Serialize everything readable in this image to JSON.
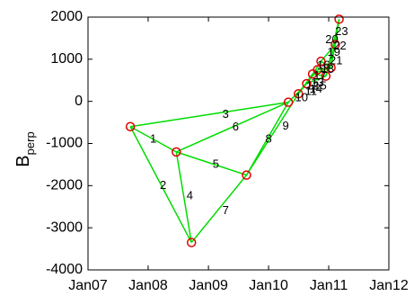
{
  "chart_data": {
    "type": "network-scatter",
    "ylabel": "B",
    "ylabel_subscript": "perp",
    "xlim": [
      "2007-01-01",
      "2012-01-01"
    ],
    "ylim": [
      -4000,
      2000
    ],
    "x_ticks": [
      "Jan07",
      "Jan08",
      "Jan09",
      "Jan10",
      "Jan11",
      "Jan12"
    ],
    "y_ticks": [
      2000,
      1000,
      0,
      -1000,
      -2000,
      -3000,
      -4000
    ],
    "grid": false,
    "colors": {
      "edge": "#00dd00",
      "node": "#e00000",
      "axis": "#000000"
    },
    "nodes": [
      {
        "id": "n1",
        "x": "2007-09-15",
        "y": -600
      },
      {
        "id": "n2",
        "x": "2008-06-20",
        "y": -1200
      },
      {
        "id": "n3",
        "x": "2008-09-20",
        "y": -3350
      },
      {
        "id": "n4",
        "x": "2009-08-20",
        "y": -1750
      },
      {
        "id": "n5",
        "x": "2010-05-01",
        "y": -20
      },
      {
        "id": "n6",
        "x": "2010-07-01",
        "y": 180
      },
      {
        "id": "n7",
        "x": "2010-08-20",
        "y": 420
      },
      {
        "id": "n8",
        "x": "2010-09-25",
        "y": 650
      },
      {
        "id": "n9",
        "x": "2010-10-25",
        "y": 750
      },
      {
        "id": "n10",
        "x": "2010-11-15",
        "y": 950
      },
      {
        "id": "n11",
        "x": "2010-12-15",
        "y": 600
      },
      {
        "id": "n12",
        "x": "2011-01-15",
        "y": 800
      },
      {
        "id": "n13",
        "x": "2011-02-10",
        "y": 1350
      },
      {
        "id": "n14",
        "x": "2011-03-05",
        "y": 1950
      }
    ],
    "edges": [
      {
        "label": "1",
        "from": "n1",
        "to": "n2",
        "lx": "2008-02-01",
        "ly": -900
      },
      {
        "label": "2",
        "from": "n1",
        "to": "n3",
        "lx": "2008-04-01",
        "ly": -2000
      },
      {
        "label": "3",
        "from": "n1",
        "to": "n5",
        "lx": "2009-04-15",
        "ly": -320
      },
      {
        "label": "4",
        "from": "n2",
        "to": "n3",
        "lx": "2008-09-10",
        "ly": -2250
      },
      {
        "label": "5",
        "from": "n2",
        "to": "n4",
        "lx": "2009-02-15",
        "ly": -1500
      },
      {
        "label": "6",
        "from": "n2",
        "to": "n5",
        "lx": "2009-06-15",
        "ly": -620
      },
      {
        "label": "7",
        "from": "n3",
        "to": "n4",
        "lx": "2009-04-15",
        "ly": -2600
      },
      {
        "label": "8",
        "from": "n4",
        "to": "n5",
        "lx": "2010-01-01",
        "ly": -900
      },
      {
        "label": "9",
        "from": "n4",
        "to": "n6",
        "lx": "2010-04-15",
        "ly": -600
      },
      {
        "label": "10",
        "from": "n5",
        "to": "n7",
        "lx": "2010-07-20",
        "ly": 80
      },
      {
        "label": "11",
        "from": "n6",
        "to": "n8",
        "lx": "2010-09-15",
        "ly": 230
      },
      {
        "label": "12",
        "from": "n6",
        "to": "n9",
        "lx": "2010-09-25",
        "ly": 350
      },
      {
        "label": "13",
        "from": "n7",
        "to": "n10",
        "lx": "2010-10-25",
        "ly": 430
      },
      {
        "label": "14",
        "from": "n7",
        "to": "n11",
        "lx": "2010-10-15",
        "ly": 280
      },
      {
        "label": "15",
        "from": "n8",
        "to": "n11",
        "lx": "2010-11-10",
        "ly": 350
      },
      {
        "label": "16",
        "from": "n9",
        "to": "n12",
        "lx": "2010-12-01",
        "ly": 850
      },
      {
        "label": "17",
        "from": "n8",
        "to": "n12",
        "lx": "2010-11-10",
        "ly": 600
      },
      {
        "label": "18",
        "from": "n10",
        "to": "n12",
        "lx": "2010-12-25",
        "ly": 750
      },
      {
        "label": "19",
        "from": "n11",
        "to": "n13",
        "lx": "2011-02-01",
        "ly": 1150
      },
      {
        "label": "20",
        "from": "n12",
        "to": "n14",
        "lx": "2011-01-20",
        "ly": 1450
      },
      {
        "label": "21",
        "from": "n11",
        "to": "n14",
        "lx": "2011-02-15",
        "ly": 950
      },
      {
        "label": "22",
        "from": "n10",
        "to": "n13",
        "lx": "2011-03-10",
        "ly": 1300
      },
      {
        "label": "23",
        "from": "n13",
        "to": "n14",
        "lx": "2011-03-20",
        "ly": 1650
      }
    ]
  }
}
